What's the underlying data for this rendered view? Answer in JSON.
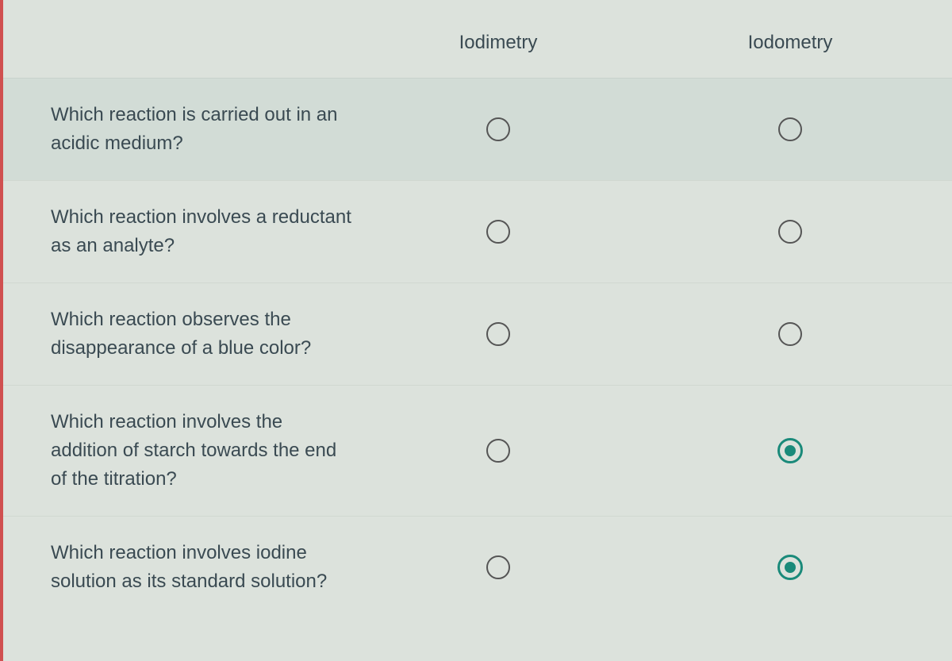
{
  "colors": {
    "background": "#dce2dc",
    "row_highlight": "#d2dcd6",
    "text": "#3a4a52",
    "radio_border": "#555555",
    "radio_selected": "#1a8a7a",
    "left_border": "#d05050"
  },
  "typography": {
    "font_family": "Arial",
    "header_fontsize": 24,
    "question_fontsize": 24
  },
  "columns": [
    {
      "label": "Iodimetry"
    },
    {
      "label": "Iodometry"
    }
  ],
  "questions": [
    {
      "text": "Which reaction is carried out in an acidic medium?",
      "highlighted": true,
      "selections": [
        false,
        false
      ]
    },
    {
      "text": "Which reaction involves a reductant as an analyte?",
      "highlighted": false,
      "selections": [
        false,
        false
      ]
    },
    {
      "text": "Which reaction observes the disappearance of a blue color?",
      "highlighted": false,
      "selections": [
        false,
        false
      ]
    },
    {
      "text": "Which reaction involves the addition of starch towards the end of the titration?",
      "highlighted": false,
      "selections": [
        false,
        true
      ]
    },
    {
      "text": "Which reaction involves iodine solution as its standard solution?",
      "highlighted": false,
      "selections": [
        false,
        true
      ]
    }
  ]
}
